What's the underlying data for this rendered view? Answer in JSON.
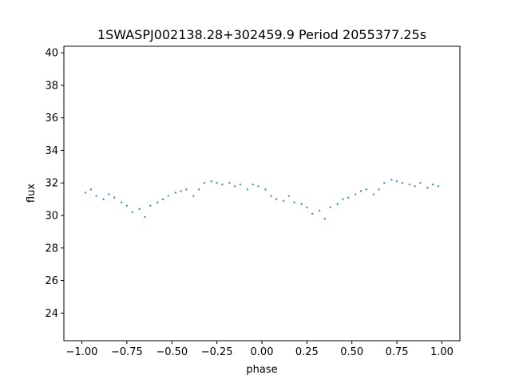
{
  "chart_data": {
    "type": "scatter",
    "title": "1SWASPJ002138.28+302459.9 Period 2055377.25s",
    "xlabel": "phase",
    "ylabel": "flux",
    "xlim": [
      -1.1,
      1.1
    ],
    "ylim": [
      22.3,
      40.4
    ],
    "xticks": [
      -1.0,
      -0.75,
      -0.5,
      -0.25,
      0.0,
      0.25,
      0.5,
      0.75,
      1.0
    ],
    "xtick_labels": [
      "−1.00",
      "−0.75",
      "−0.50",
      "−0.25",
      "0.00",
      "0.25",
      "0.50",
      "0.75",
      "1.00"
    ],
    "yticks": [
      24,
      26,
      28,
      30,
      32,
      34,
      36,
      38,
      40
    ],
    "ytick_labels": [
      "24",
      "26",
      "28",
      "30",
      "32",
      "34",
      "36",
      "38",
      "40"
    ],
    "grid": false,
    "legend": "none",
    "marker_color": "#1f77b4",
    "series": [
      {
        "x": [
          -0.98,
          -0.95,
          -0.92,
          -0.88,
          -0.85,
          -0.82,
          -0.78,
          -0.75,
          -0.72,
          -0.68,
          -0.65,
          -0.62,
          -0.58,
          -0.55,
          -0.52,
          -0.48,
          -0.45,
          -0.42,
          -0.38,
          -0.35,
          -0.32,
          -0.28,
          -0.25,
          -0.22,
          -0.18,
          -0.15,
          -0.12,
          -0.08,
          -0.05,
          -0.02,
          0.02,
          0.05,
          0.08,
          0.12,
          0.15,
          0.18,
          0.22,
          0.25,
          0.28,
          0.32,
          0.35,
          0.38,
          0.42,
          0.45,
          0.48,
          0.52,
          0.55,
          0.58,
          0.62,
          0.65,
          0.68,
          0.72,
          0.75,
          0.78,
          0.82,
          0.85,
          0.88,
          0.92,
          0.95,
          0.98
        ],
        "y": [
          31.4,
          31.6,
          31.2,
          31.0,
          31.3,
          31.1,
          30.8,
          30.6,
          30.2,
          30.4,
          29.9,
          30.6,
          30.8,
          31.0,
          31.2,
          31.4,
          31.5,
          31.6,
          31.2,
          31.6,
          32.0,
          32.1,
          32.0,
          31.9,
          32.0,
          31.8,
          31.9,
          31.6,
          31.9,
          31.8,
          31.6,
          31.2,
          31.0,
          30.9,
          31.2,
          30.8,
          30.7,
          30.5,
          30.1,
          30.3,
          29.8,
          30.5,
          30.7,
          31.0,
          31.1,
          31.3,
          31.5,
          31.6,
          31.3,
          31.6,
          32.0,
          32.2,
          32.1,
          32.0,
          31.9,
          31.8,
          32.0,
          31.7,
          31.9,
          31.8
        ]
      }
    ]
  }
}
